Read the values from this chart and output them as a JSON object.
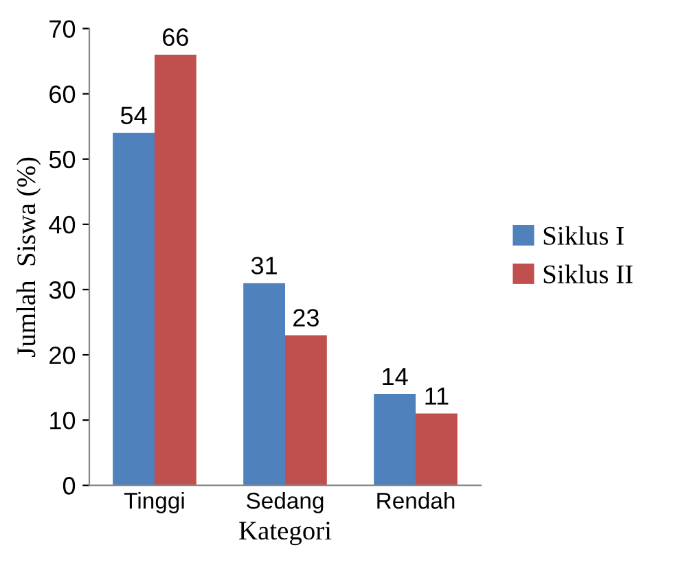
{
  "chart_data": {
    "type": "bar",
    "xlabel": "Kategori",
    "ylabel": "Jumlah  Siswa (%)",
    "categories": [
      "Tinggi",
      "Sedang",
      "Rendah"
    ],
    "series": [
      {
        "name": "Siklus I",
        "color": "#4f81bd",
        "values": [
          54,
          31,
          14
        ]
      },
      {
        "name": "Siklus II",
        "color": "#c0504d",
        "values": [
          66,
          23,
          11
        ]
      }
    ],
    "ylim": [
      0,
      70
    ],
    "yticks": [
      0,
      10,
      20,
      30,
      40,
      50,
      60,
      70
    ],
    "grid": false,
    "legend": "right",
    "data_labels": true
  }
}
